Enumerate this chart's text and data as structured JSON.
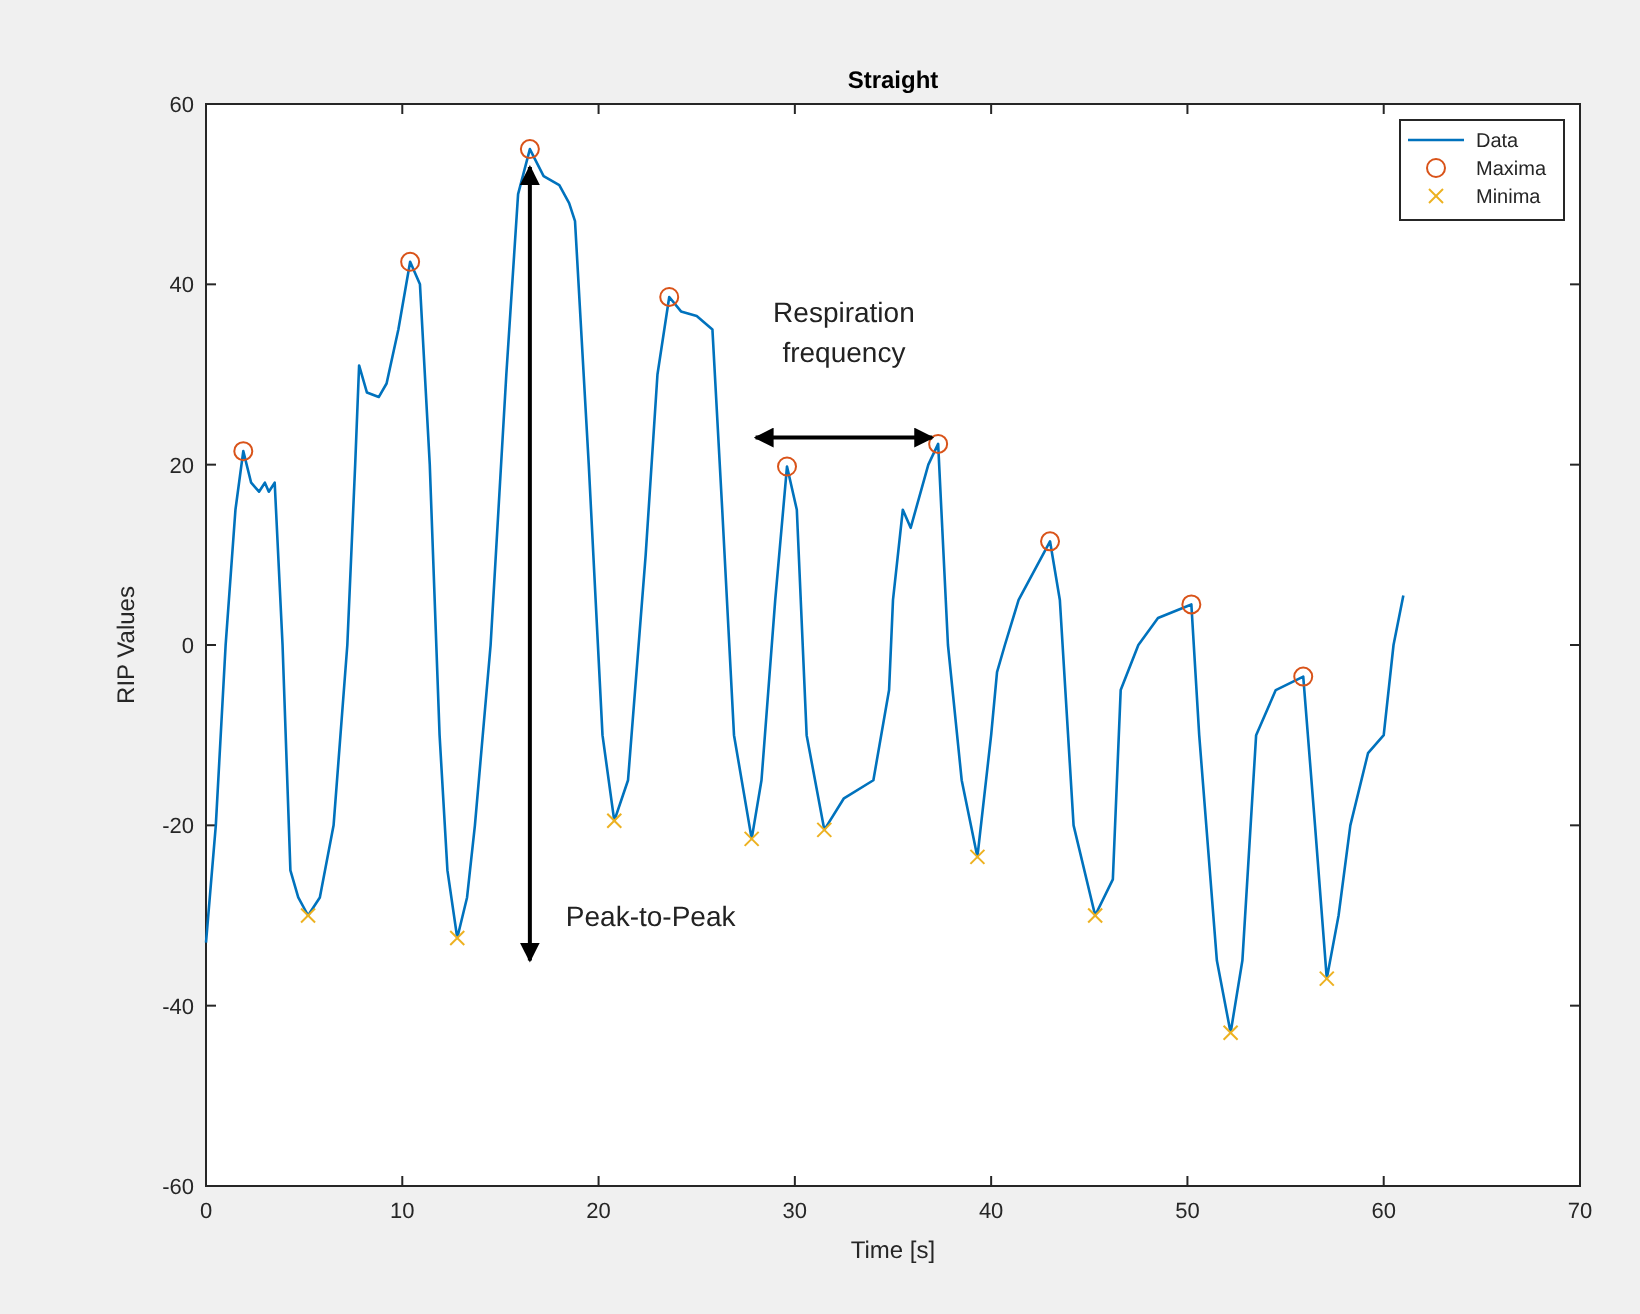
{
  "chart_data": {
    "type": "line",
    "title": "Straight",
    "xlabel": "Time [s]",
    "ylabel": "RIP Values",
    "xlim": [
      0,
      70
    ],
    "ylim": [
      -60,
      60
    ],
    "xticks": [
      0,
      10,
      20,
      30,
      40,
      50,
      60,
      70
    ],
    "yticks": [
      -60,
      -40,
      -20,
      0,
      20,
      40,
      60
    ],
    "grid": false,
    "legend": "top right",
    "annotations": [
      "Peak-to-Peak",
      "Respiration\nfrequency"
    ],
    "series": [
      {
        "name": "Data",
        "color": "#0072bd",
        "marker": "none",
        "line_style": "solid",
        "x": [
          0,
          0.5,
          1,
          1.5,
          1.9,
          2.3,
          2.7,
          3,
          3.2,
          3.5,
          3.9,
          4.3,
          4.7,
          5.2,
          5.8,
          6.5,
          7.2,
          7.6,
          7.8,
          8.2,
          8.8,
          9.2,
          9.8,
          10.4,
          10.9,
          11.4,
          11.9,
          12.3,
          12.8,
          13.3,
          13.7,
          14.5,
          15.3,
          15.9,
          16.5,
          17.2,
          18,
          18.5,
          18.8,
          19.5,
          20.2,
          20.8,
          21.5,
          22.4,
          23,
          23.6,
          24.2,
          25,
          25.8,
          26.3,
          26.9,
          27.8,
          28.3,
          29,
          29.6,
          30.1,
          30.6,
          31.5,
          32.5,
          34,
          34.8,
          35,
          35.5,
          35.9,
          36.8,
          37.3,
          37.8,
          38.5,
          39.3,
          40,
          40.3,
          40.7,
          41.4,
          43,
          43.5,
          44.2,
          45.3,
          46.2,
          46.6,
          47.5,
          48.5,
          50.2,
          50.6,
          51.5,
          52.2,
          52.8,
          53.5,
          54.5,
          55.9,
          56.5,
          57.1,
          57.7,
          58.3,
          59.2,
          60,
          60.5,
          61
        ],
        "values": [
          -33,
          -20,
          0,
          15,
          21.5,
          18,
          17,
          18,
          17,
          18,
          0,
          -25,
          -28,
          -30,
          -28,
          -20,
          0,
          20,
          31,
          28,
          27.5,
          29,
          35,
          42.5,
          40,
          20,
          -10,
          -25,
          -32.5,
          -28,
          -20,
          0,
          30,
          50,
          55,
          52,
          51,
          49,
          47,
          20,
          -10,
          -19.5,
          -15,
          10,
          30,
          38.6,
          37,
          36.5,
          35,
          15,
          -10,
          -21.5,
          -15,
          5,
          19.8,
          15,
          -10,
          -20.5,
          -17,
          -15,
          -5,
          5,
          15,
          13,
          20,
          22.3,
          0,
          -15,
          -23.5,
          -10,
          -3,
          0,
          5,
          11.5,
          5,
          -20,
          -30,
          -26,
          -5,
          0,
          3,
          4.5,
          -10,
          -35,
          -43,
          -35,
          -10,
          -5,
          -3.5,
          -20,
          -37,
          -30,
          -20,
          -12,
          -10,
          0,
          5.5
        ]
      },
      {
        "name": "Maxima",
        "type": "scatter",
        "color": "#d95319",
        "marker": "circle",
        "x": [
          1.9,
          10.4,
          16.5,
          23.6,
          29.6,
          37.3,
          43,
          50.2,
          55.9
        ],
        "values": [
          21.5,
          42.5,
          55,
          38.6,
          19.8,
          22.3,
          11.5,
          4.5,
          -3.5
        ]
      },
      {
        "name": "Minima",
        "type": "scatter",
        "color": "#edb120",
        "marker": "cross",
        "x": [
          5.2,
          12.8,
          20.8,
          27.8,
          31.5,
          39.3,
          45.3,
          52.2,
          57.1
        ],
        "values": [
          -30,
          -32.5,
          -19.5,
          -21.5,
          -20.5,
          -23.5,
          -30,
          -43,
          -37
        ]
      }
    ]
  }
}
